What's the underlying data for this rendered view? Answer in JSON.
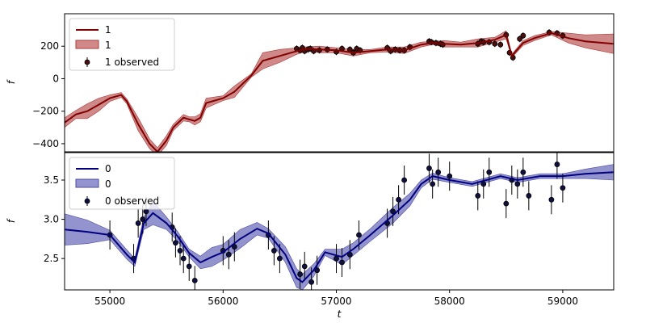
{
  "chart_data": [
    {
      "type": "line",
      "title": "",
      "xlabel": "",
      "ylabel": "f",
      "xlim": [
        54600,
        59450
      ],
      "ylim": [
        -450,
        400
      ],
      "yticks": [
        200,
        0,
        -200,
        -400
      ],
      "yticklabels": [
        "200",
        "0",
        "−200",
        "−400"
      ],
      "colors": {
        "line": "#800000",
        "band": "#b03a3a",
        "points": "#4a1010"
      },
      "legend": {
        "position": "top-left",
        "entries": [
          "1",
          "1",
          "1 observed"
        ]
      },
      "series": [
        {
          "name": "1",
          "kind": "mean",
          "x": [
            54600,
            54700,
            54800,
            54900,
            55000,
            55100,
            55150,
            55250,
            55350,
            55420,
            55500,
            55560,
            55650,
            55700,
            55750,
            55800,
            55850,
            56000,
            56100,
            56250,
            56350,
            56500,
            56650,
            56750,
            56850,
            57000,
            57150,
            57300,
            57450,
            57600,
            57750,
            57850,
            57950,
            58100,
            58250,
            58400,
            58500,
            58550,
            58650,
            58750,
            58900,
            59050,
            59200,
            59450
          ],
          "y": [
            -270,
            -220,
            -200,
            -160,
            -120,
            -100,
            -140,
            -280,
            -400,
            -450,
            -380,
            -300,
            -240,
            -250,
            -260,
            -240,
            -150,
            -120,
            -80,
            20,
            110,
            140,
            170,
            185,
            180,
            175,
            160,
            170,
            180,
            175,
            210,
            220,
            215,
            210,
            220,
            240,
            270,
            140,
            220,
            250,
            280,
            250,
            230,
            215
          ]
        },
        {
          "name": "1",
          "kind": "band",
          "x": [
            54600,
            54700,
            54800,
            54900,
            55000,
            55100,
            55150,
            55250,
            55350,
            55420,
            55500,
            55560,
            55650,
            55700,
            55750,
            55800,
            55850,
            56000,
            56100,
            56250,
            56350,
            56500,
            56650,
            56750,
            56850,
            57000,
            57150,
            57300,
            57450,
            57600,
            57750,
            57850,
            57950,
            58100,
            58250,
            58400,
            58500,
            58550,
            58650,
            58750,
            58900,
            59050,
            59200,
            59450
          ],
          "hw": [
            30,
            25,
            45,
            40,
            20,
            15,
            15,
            40,
            30,
            25,
            30,
            20,
            20,
            15,
            25,
            25,
            30,
            15,
            35,
            10,
            50,
            40,
            20,
            12,
            20,
            15,
            20,
            10,
            15,
            20,
            15,
            10,
            20,
            15,
            25,
            15,
            25,
            10,
            15,
            15,
            10,
            30,
            40,
            60
          ]
        },
        {
          "name": "1 observed",
          "kind": "observed",
          "x": [
            56650,
            56680,
            56700,
            56720,
            56750,
            56770,
            56800,
            56850,
            56920,
            57000,
            57050,
            57120,
            57150,
            57180,
            57210,
            57450,
            57480,
            57520,
            57560,
            57600,
            57650,
            57820,
            57840,
            57880,
            57920,
            57940,
            58250,
            58280,
            58300,
            58350,
            58400,
            58450,
            58500,
            58530,
            58560,
            58620,
            58650,
            58880,
            58950,
            59000
          ],
          "y": [
            185,
            175,
            190,
            170,
            180,
            185,
            170,
            175,
            180,
            165,
            185,
            180,
            160,
            185,
            175,
            190,
            170,
            180,
            175,
            175,
            195,
            230,
            225,
            220,
            215,
            210,
            215,
            230,
            225,
            225,
            215,
            210,
            270,
            160,
            130,
            245,
            265,
            285,
            280,
            265
          ]
        }
      ]
    },
    {
      "type": "line",
      "title": "",
      "xlabel": "t",
      "ylabel": "f",
      "xlim": [
        54600,
        59450
      ],
      "ylim": [
        2.1,
        3.85
      ],
      "xticks": [
        55000,
        56000,
        57000,
        58000,
        59000
      ],
      "xticklabels": [
        "55000",
        "56000",
        "57000",
        "58000",
        "59000"
      ],
      "yticks": [
        3.5,
        3.0,
        2.5
      ],
      "yticklabels": [
        "3.5",
        "3.0",
        "2.5"
      ],
      "colors": {
        "line": "#000080",
        "band": "#4b4bab",
        "points": "#101040"
      },
      "legend": {
        "position": "top-left",
        "entries": [
          "0",
          "0",
          "0 observed"
        ]
      },
      "series": [
        {
          "name": "0",
          "kind": "mean",
          "x": [
            54600,
            54800,
            55000,
            55150,
            55220,
            55300,
            55380,
            55500,
            55600,
            55700,
            55800,
            55900,
            56000,
            56150,
            56300,
            56400,
            56550,
            56650,
            56700,
            56800,
            56900,
            57050,
            57150,
            57300,
            57500,
            57650,
            57750,
            57850,
            58000,
            58200,
            58450,
            58600,
            58800,
            59000,
            59200,
            59450
          ],
          "y": [
            2.87,
            2.84,
            2.8,
            2.55,
            2.45,
            2.95,
            3.08,
            2.95,
            2.78,
            2.57,
            2.45,
            2.52,
            2.58,
            2.75,
            2.88,
            2.82,
            2.55,
            2.25,
            2.2,
            2.35,
            2.58,
            2.52,
            2.62,
            2.8,
            3.05,
            3.25,
            3.45,
            3.55,
            3.5,
            3.45,
            3.55,
            3.5,
            3.55,
            3.55,
            3.58,
            3.6
          ]
        },
        {
          "name": "0",
          "kind": "band",
          "x": [
            54600,
            54800,
            55000,
            55150,
            55220,
            55300,
            55380,
            55500,
            55600,
            55700,
            55800,
            55900,
            56000,
            56150,
            56300,
            56400,
            56550,
            56650,
            56700,
            56800,
            56900,
            57050,
            57150,
            57300,
            57500,
            57650,
            57750,
            57850,
            58000,
            58200,
            58450,
            58600,
            58800,
            59000,
            59200,
            59450
          ],
          "hw": [
            0.2,
            0.15,
            0.06,
            0.06,
            0.05,
            0.08,
            0.15,
            0.08,
            0.06,
            0.05,
            0.08,
            0.12,
            0.1,
            0.12,
            0.08,
            0.06,
            0.1,
            0.12,
            0.1,
            0.08,
            0.04,
            0.1,
            0.08,
            0.08,
            0.1,
            0.08,
            0.05,
            0.04,
            0.03,
            0.03,
            0.03,
            0.03,
            0.03,
            0.03,
            0.06,
            0.1
          ]
        },
        {
          "name": "0 observed",
          "kind": "observed",
          "x": [
            55000,
            55210,
            55250,
            55290,
            55320,
            55550,
            55580,
            55620,
            55650,
            55700,
            55750,
            56000,
            56050,
            56100,
            56400,
            56450,
            56500,
            56680,
            56720,
            56780,
            56830,
            57000,
            57050,
            57120,
            57200,
            57450,
            57500,
            57550,
            57600,
            57820,
            57850,
            57900,
            58000,
            58250,
            58300,
            58350,
            58500,
            58550,
            58600,
            58650,
            58700,
            58900,
            58950,
            59000
          ],
          "y": [
            2.8,
            2.5,
            2.95,
            3.0,
            3.1,
            2.9,
            2.7,
            2.6,
            2.5,
            2.4,
            2.22,
            2.6,
            2.55,
            2.65,
            2.8,
            2.6,
            2.5,
            2.3,
            2.4,
            2.2,
            2.35,
            2.5,
            2.45,
            2.55,
            2.8,
            2.95,
            3.1,
            3.25,
            3.5,
            3.65,
            3.45,
            3.6,
            3.55,
            3.3,
            3.45,
            3.6,
            3.2,
            3.5,
            3.45,
            3.6,
            3.3,
            3.25,
            3.7,
            3.4
          ]
        }
      ]
    }
  ]
}
